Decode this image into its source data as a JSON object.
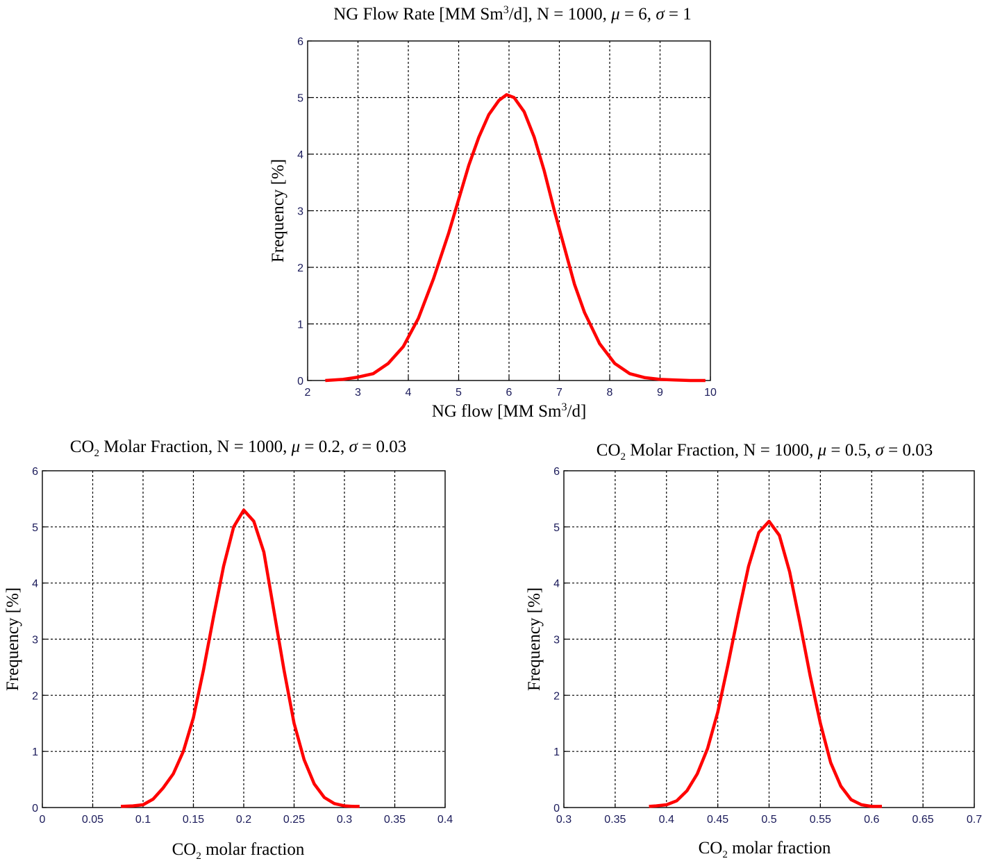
{
  "chart_data": [
    {
      "type": "line",
      "title": {
        "before": "NG Flow Rate [MM Sm",
        "sup": "3",
        "after": "/d], N = 1000, ",
        "mu_sym": "μ",
        "mu_text": " = 6, ",
        "sigma_sym": "σ",
        "sigma_text": " = 1"
      },
      "xlabel": {
        "before": "NG flow [MM Sm",
        "sup": "3",
        "after": "/d]"
      },
      "ylabel": "Frequency [%]",
      "xlim": [
        2,
        10
      ],
      "ylim": [
        0,
        6
      ],
      "xticks": [
        "2",
        "3",
        "4",
        "5",
        "6",
        "7",
        "8",
        "9",
        "10"
      ],
      "yticks": [
        "0",
        "1",
        "2",
        "3",
        "4",
        "5",
        "6"
      ],
      "grid": true,
      "line_color": "#ff0000",
      "series": [
        {
          "x": [
            2.35,
            2.7,
            3.0,
            3.3,
            3.6,
            3.9,
            4.2,
            4.5,
            4.8,
            5.0,
            5.2,
            5.4,
            5.6,
            5.8,
            5.95,
            6.1,
            6.3,
            6.5,
            6.7,
            6.9,
            7.1,
            7.3,
            7.5,
            7.8,
            8.1,
            8.4,
            8.7,
            9.0,
            9.3,
            9.6,
            9.9
          ],
          "y": [
            0.0,
            0.02,
            0.06,
            0.12,
            0.3,
            0.6,
            1.1,
            1.8,
            2.6,
            3.2,
            3.8,
            4.3,
            4.7,
            4.95,
            5.05,
            5.0,
            4.75,
            4.3,
            3.7,
            3.0,
            2.35,
            1.7,
            1.2,
            0.65,
            0.3,
            0.12,
            0.05,
            0.02,
            0.01,
            0.0,
            0.0
          ]
        }
      ]
    },
    {
      "type": "line",
      "title": {
        "before": "CO",
        "sub": "2",
        "after": " Molar Fraction, N = 1000, ",
        "mu_sym": "μ",
        "mu_text": " = 0.2, ",
        "sigma_sym": "σ",
        "sigma_text": " = 0.03"
      },
      "xlabel": {
        "before": "CO",
        "sub": "2",
        "after": " molar fraction"
      },
      "ylabel": "Frequency [%]",
      "xlim": [
        0,
        0.4
      ],
      "ylim": [
        0,
        6
      ],
      "xticks": [
        "0",
        "0.05",
        "0.1",
        "0.15",
        "0.2",
        "0.25",
        "0.3",
        "0.35",
        "0.4"
      ],
      "yticks": [
        "0",
        "1",
        "2",
        "3",
        "4",
        "5",
        "6"
      ],
      "grid": true,
      "line_color": "#ff0000",
      "series": [
        {
          "x": [
            0.078,
            0.09,
            0.1,
            0.11,
            0.12,
            0.13,
            0.14,
            0.15,
            0.16,
            0.17,
            0.18,
            0.19,
            0.2,
            0.21,
            0.22,
            0.23,
            0.24,
            0.25,
            0.26,
            0.27,
            0.28,
            0.29,
            0.3,
            0.31,
            0.315
          ],
          "y": [
            0.02,
            0.03,
            0.05,
            0.15,
            0.35,
            0.6,
            1.0,
            1.6,
            2.45,
            3.4,
            4.3,
            5.0,
            5.3,
            5.1,
            4.55,
            3.5,
            2.45,
            1.5,
            0.85,
            0.42,
            0.18,
            0.07,
            0.03,
            0.02,
            0.02
          ]
        }
      ]
    },
    {
      "type": "line",
      "title": {
        "before": "CO",
        "sub": "2",
        "after": " Molar Fraction, N = 1000, ",
        "mu_sym": "μ",
        "mu_text": " = 0.5, ",
        "sigma_sym": "σ",
        "sigma_text": " = 0.03"
      },
      "xlabel": {
        "before": "CO",
        "sub": "2",
        "after": " molar fraction"
      },
      "ylabel": "Frequency [%]",
      "xlim": [
        0.3,
        0.7
      ],
      "ylim": [
        0,
        6
      ],
      "xticks": [
        "0.3",
        "0.35",
        "0.4",
        "0.45",
        "0.5",
        "0.55",
        "0.6",
        "0.65",
        "0.7"
      ],
      "yticks": [
        "0",
        "1",
        "2",
        "3",
        "4",
        "5",
        "6"
      ],
      "grid": true,
      "line_color": "#ff0000",
      "series": [
        {
          "x": [
            0.383,
            0.39,
            0.4,
            0.41,
            0.42,
            0.43,
            0.44,
            0.45,
            0.46,
            0.47,
            0.48,
            0.49,
            0.5,
            0.51,
            0.52,
            0.53,
            0.54,
            0.55,
            0.56,
            0.57,
            0.58,
            0.59,
            0.6,
            0.61
          ],
          "y": [
            0.02,
            0.03,
            0.05,
            0.12,
            0.3,
            0.6,
            1.05,
            1.7,
            2.55,
            3.45,
            4.3,
            4.9,
            5.1,
            4.85,
            4.2,
            3.3,
            2.35,
            1.5,
            0.8,
            0.38,
            0.14,
            0.05,
            0.02,
            0.02
          ]
        }
      ]
    }
  ]
}
